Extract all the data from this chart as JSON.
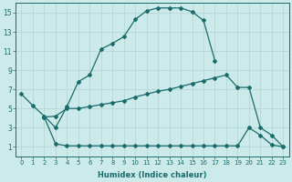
{
  "title": "",
  "xlabel": "Humidex (Indice chaleur)",
  "ylabel": "",
  "bg_color": "#cceaea",
  "line_color": "#1a6b6b",
  "grid_color": "#b0d4d4",
  "xlim": [
    -0.5,
    23.5
  ],
  "ylim": [
    0,
    16
  ],
  "xticks": [
    0,
    1,
    2,
    3,
    4,
    5,
    6,
    7,
    8,
    9,
    10,
    11,
    12,
    13,
    14,
    15,
    16,
    17,
    18,
    19,
    20,
    21,
    22,
    23
  ],
  "yticks": [
    1,
    3,
    5,
    7,
    9,
    11,
    13,
    15
  ],
  "line1_x": [
    0,
    1,
    2,
    3,
    4,
    5,
    6,
    7,
    8,
    9,
    10,
    11,
    12,
    13,
    14,
    15,
    16,
    17
  ],
  "line1_y": [
    6.5,
    5.3,
    4.2,
    3.0,
    5.2,
    7.8,
    8.5,
    11.2,
    11.8,
    12.5,
    14.3,
    15.2,
    15.5,
    15.5,
    15.5,
    15.1,
    14.2,
    10.0
  ],
  "line2_x": [
    2,
    3,
    4,
    5,
    6,
    7,
    8,
    9,
    10,
    11,
    12,
    13,
    14,
    15,
    16,
    17,
    18,
    19,
    20,
    21,
    22,
    23
  ],
  "line2_y": [
    4.1,
    1.3,
    1.1,
    1.1,
    1.1,
    1.1,
    1.1,
    1.1,
    1.1,
    1.1,
    1.1,
    1.1,
    1.1,
    1.1,
    1.1,
    1.1,
    1.1,
    1.1,
    3.0,
    2.2,
    1.2,
    1.0
  ],
  "line3_x": [
    2,
    3,
    4,
    5,
    6,
    7,
    8,
    9,
    10,
    11,
    12,
    13,
    14,
    15,
    16,
    17,
    18,
    19,
    20,
    21,
    22,
    23
  ],
  "line3_y": [
    4.1,
    4.2,
    5.0,
    5.0,
    5.2,
    5.4,
    5.6,
    5.8,
    6.2,
    6.5,
    6.8,
    7.0,
    7.3,
    7.6,
    7.9,
    8.2,
    8.5,
    7.2,
    7.2,
    3.0,
    2.2,
    1.0
  ],
  "marker": "D",
  "markersize": 2,
  "linewidth": 0.9,
  "tick_fontsize": 5,
  "xlabel_fontsize": 6
}
